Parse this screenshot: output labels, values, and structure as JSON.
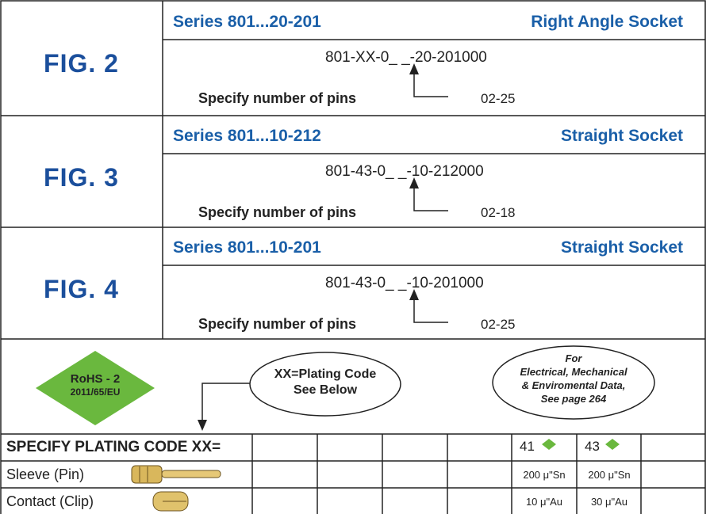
{
  "figures": [
    {
      "label": "FIG. 2",
      "series": "Series 801...20-201",
      "kind": "Right Angle Socket",
      "part_number": "801-XX-0_ _-20-201000",
      "note": "Specify number of pins",
      "range": "02-25"
    },
    {
      "label": "FIG. 3",
      "series": "Series 801...10-212",
      "kind": "Straight Socket",
      "part_number": "801-43-0_ _-10-212000",
      "note": "Specify number of pins",
      "range": "02-18"
    },
    {
      "label": "FIG. 4",
      "series": "Series 801...10-201",
      "kind": "Straight Socket",
      "part_number": "801-43-0_ _-10-201000",
      "note": "Specify number of pins",
      "range": "02-25"
    }
  ],
  "rohs": {
    "line1": "RoHS - 2",
    "line2": "2011/65/EU"
  },
  "plating_note": {
    "lines": [
      "XX=Plating Code",
      "See Below"
    ]
  },
  "data_note": {
    "lines": [
      "For",
      "Electrical, Mechanical",
      "& Enviromental Data,",
      "See page 264"
    ]
  },
  "plating_table": {
    "header": "SPECIFY PLATING CODE XX=",
    "codes": [
      "41",
      "43"
    ],
    "rows": [
      {
        "label": "Sleeve (Pin)",
        "values": [
          "200 μ\"Sn",
          "200 μ\"Sn"
        ]
      },
      {
        "label": "Contact (Clip)",
        "values": [
          "10 μ\"Au",
          "30 μ\"Au"
        ]
      }
    ]
  }
}
